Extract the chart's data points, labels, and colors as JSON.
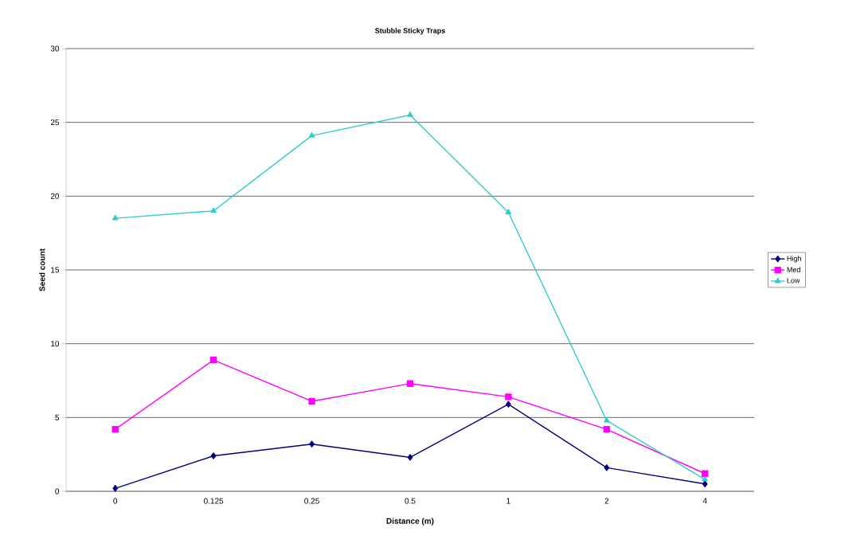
{
  "chart_data": {
    "type": "line",
    "title": "Stubble Sticky Traps",
    "xlabel": "Distance (m)",
    "ylabel": "Seed count",
    "categories": [
      "0",
      "0.125",
      "0.25",
      "0.5",
      "1",
      "2",
      "4"
    ],
    "series": [
      {
        "name": "High",
        "color": "#000080",
        "marker": "diamond",
        "values": [
          0.2,
          2.4,
          3.2,
          2.3,
          5.9,
          1.6,
          0.5
        ]
      },
      {
        "name": "Med",
        "color": "#ff00ff",
        "marker": "square",
        "values": [
          4.2,
          8.9,
          6.1,
          7.3,
          6.4,
          4.2,
          1.2
        ]
      },
      {
        "name": "Low",
        "color": "#33cccc",
        "marker": "triangle",
        "values": [
          18.5,
          19.0,
          24.1,
          25.5,
          18.9,
          4.8,
          0.8
        ]
      }
    ],
    "ylim": [
      0,
      30
    ],
    "yticks": [
      0,
      5,
      10,
      15,
      20,
      25,
      30
    ],
    "grid": "y",
    "legend": "right",
    "line_style": "solid"
  }
}
